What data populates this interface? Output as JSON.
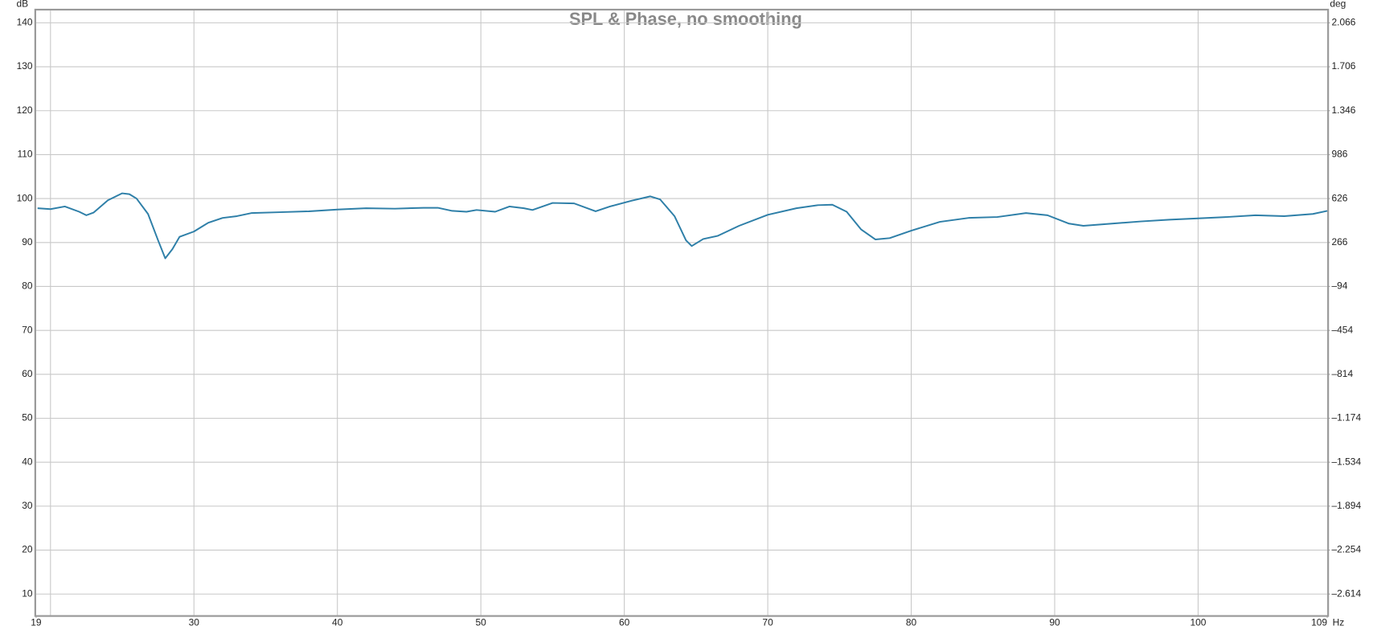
{
  "chart_data": {
    "type": "line",
    "title": "SPL & Phase, no smoothing",
    "x_unit": "Hz",
    "y_unit": "dB",
    "y2_unit": "deg",
    "x": [
      19.1,
      20,
      21,
      22,
      22.5,
      23,
      24,
      25,
      25.5,
      26,
      26.8,
      27.5,
      28,
      28.5,
      29,
      30,
      31,
      32,
      33,
      34,
      36,
      38,
      40,
      42,
      44,
      46,
      47,
      48,
      49,
      49.7,
      51,
      52,
      53,
      53.6,
      55,
      56.5,
      58,
      59,
      60.5,
      61.8,
      62.5,
      63.5,
      64.3,
      64.7,
      65.5,
      66.5,
      68,
      70,
      72,
      73.5,
      74.5,
      75.5,
      76.5,
      77.5,
      78.5,
      80,
      82,
      84,
      86,
      88,
      89.5,
      91,
      92,
      94,
      96,
      98,
      100,
      102,
      104,
      106,
      108,
      109
    ],
    "series": [
      {
        "color": "#2e7fa8",
        "values": [
          97.8,
          97.6,
          98.2,
          97.0,
          96.2,
          96.8,
          99.6,
          101.2,
          101.0,
          100.0,
          96.5,
          90.5,
          86.4,
          88.5,
          91.3,
          92.5,
          94.5,
          95.6,
          96.0,
          96.7,
          96.9,
          97.1,
          97.5,
          97.8,
          97.7,
          97.9,
          97.9,
          97.2,
          97.0,
          97.4,
          97.0,
          98.2,
          97.8,
          97.4,
          99.0,
          98.9,
          97.1,
          98.2,
          99.5,
          100.5,
          99.8,
          96.0,
          90.5,
          89.2,
          90.8,
          91.5,
          93.8,
          96.3,
          97.8,
          98.5,
          98.6,
          97.0,
          93.0,
          90.7,
          91.0,
          92.7,
          94.7,
          95.6,
          95.8,
          96.7,
          96.2,
          94.3,
          93.8,
          94.3,
          94.8,
          95.2,
          95.5,
          95.8,
          96.2,
          96.0,
          96.5,
          97.2
        ]
      }
    ],
    "xlim": [
      19,
      109
    ],
    "xticks": [
      19,
      {
        "value": 20,
        "label": null
      },
      30,
      40,
      50,
      60,
      70,
      80,
      90,
      100,
      109
    ],
    "ylim": [
      5.2,
      142.8
    ],
    "yticks": [
      10,
      20,
      30,
      40,
      50,
      60,
      70,
      80,
      90,
      100,
      110,
      120,
      130,
      140
    ],
    "y2lim": [
      -2786.8,
      2166.8
    ],
    "y2ticks": [
      {
        "value": -2614,
        "label": "–2.614"
      },
      {
        "value": -2254,
        "label": "–2.254"
      },
      {
        "value": -1894,
        "label": "–1.894"
      },
      {
        "value": -1534,
        "label": "–1.534"
      },
      {
        "value": -1174,
        "label": "–1.174"
      },
      {
        "value": -814,
        "label": "–814"
      },
      {
        "value": -454,
        "label": "–454"
      },
      {
        "value": -94,
        "label": "–94"
      },
      266,
      626,
      986,
      {
        "value": 1346,
        "label": "1.346"
      },
      {
        "value": 1706,
        "label": "1.706"
      },
      {
        "value": 2066,
        "label": "2.066"
      }
    ],
    "grid": true
  }
}
